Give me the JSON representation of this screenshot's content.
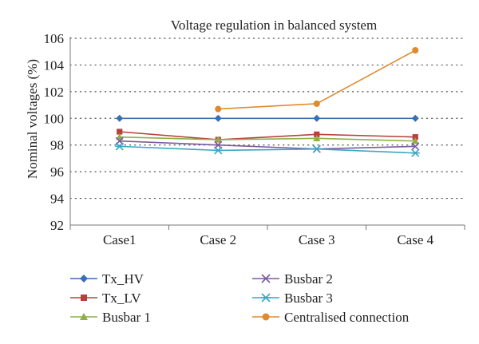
{
  "chart_data": {
    "type": "line",
    "title": "Voltage regulation in balanced system",
    "ylabel": "Nominal voltages (%)",
    "xlabel": "",
    "categories": [
      "Case1",
      "Case 2",
      "Case 3",
      "Case 4"
    ],
    "ylim": [
      92,
      106
    ],
    "yticks": [
      92,
      94,
      96,
      98,
      100,
      102,
      104,
      106
    ],
    "grid": "horizontal-dotted",
    "legend_position": "bottom",
    "series": [
      {
        "name": "Tx_HV",
        "values": [
          100,
          100,
          100,
          100
        ],
        "color": "#3a6fb0",
        "marker": "diamond"
      },
      {
        "name": "Tx_LV",
        "values": [
          99.0,
          98.4,
          98.8,
          98.6
        ],
        "color": "#b8403c",
        "marker": "square"
      },
      {
        "name": "Busbar 1",
        "values": [
          98.6,
          98.4,
          98.5,
          98.3
        ],
        "color": "#8eb045",
        "marker": "triangle"
      },
      {
        "name": "Busbar 2",
        "values": [
          98.3,
          98.0,
          97.7,
          97.9
        ],
        "color": "#7a5aa0",
        "marker": "x"
      },
      {
        "name": "Busbar 3",
        "values": [
          97.9,
          97.6,
          97.7,
          97.4
        ],
        "color": "#3aa6c4",
        "marker": "star"
      },
      {
        "name": "Centralised connection",
        "values": [
          null,
          100.7,
          101.1,
          105.1
        ],
        "color": "#e08a2e",
        "marker": "circle"
      }
    ]
  }
}
